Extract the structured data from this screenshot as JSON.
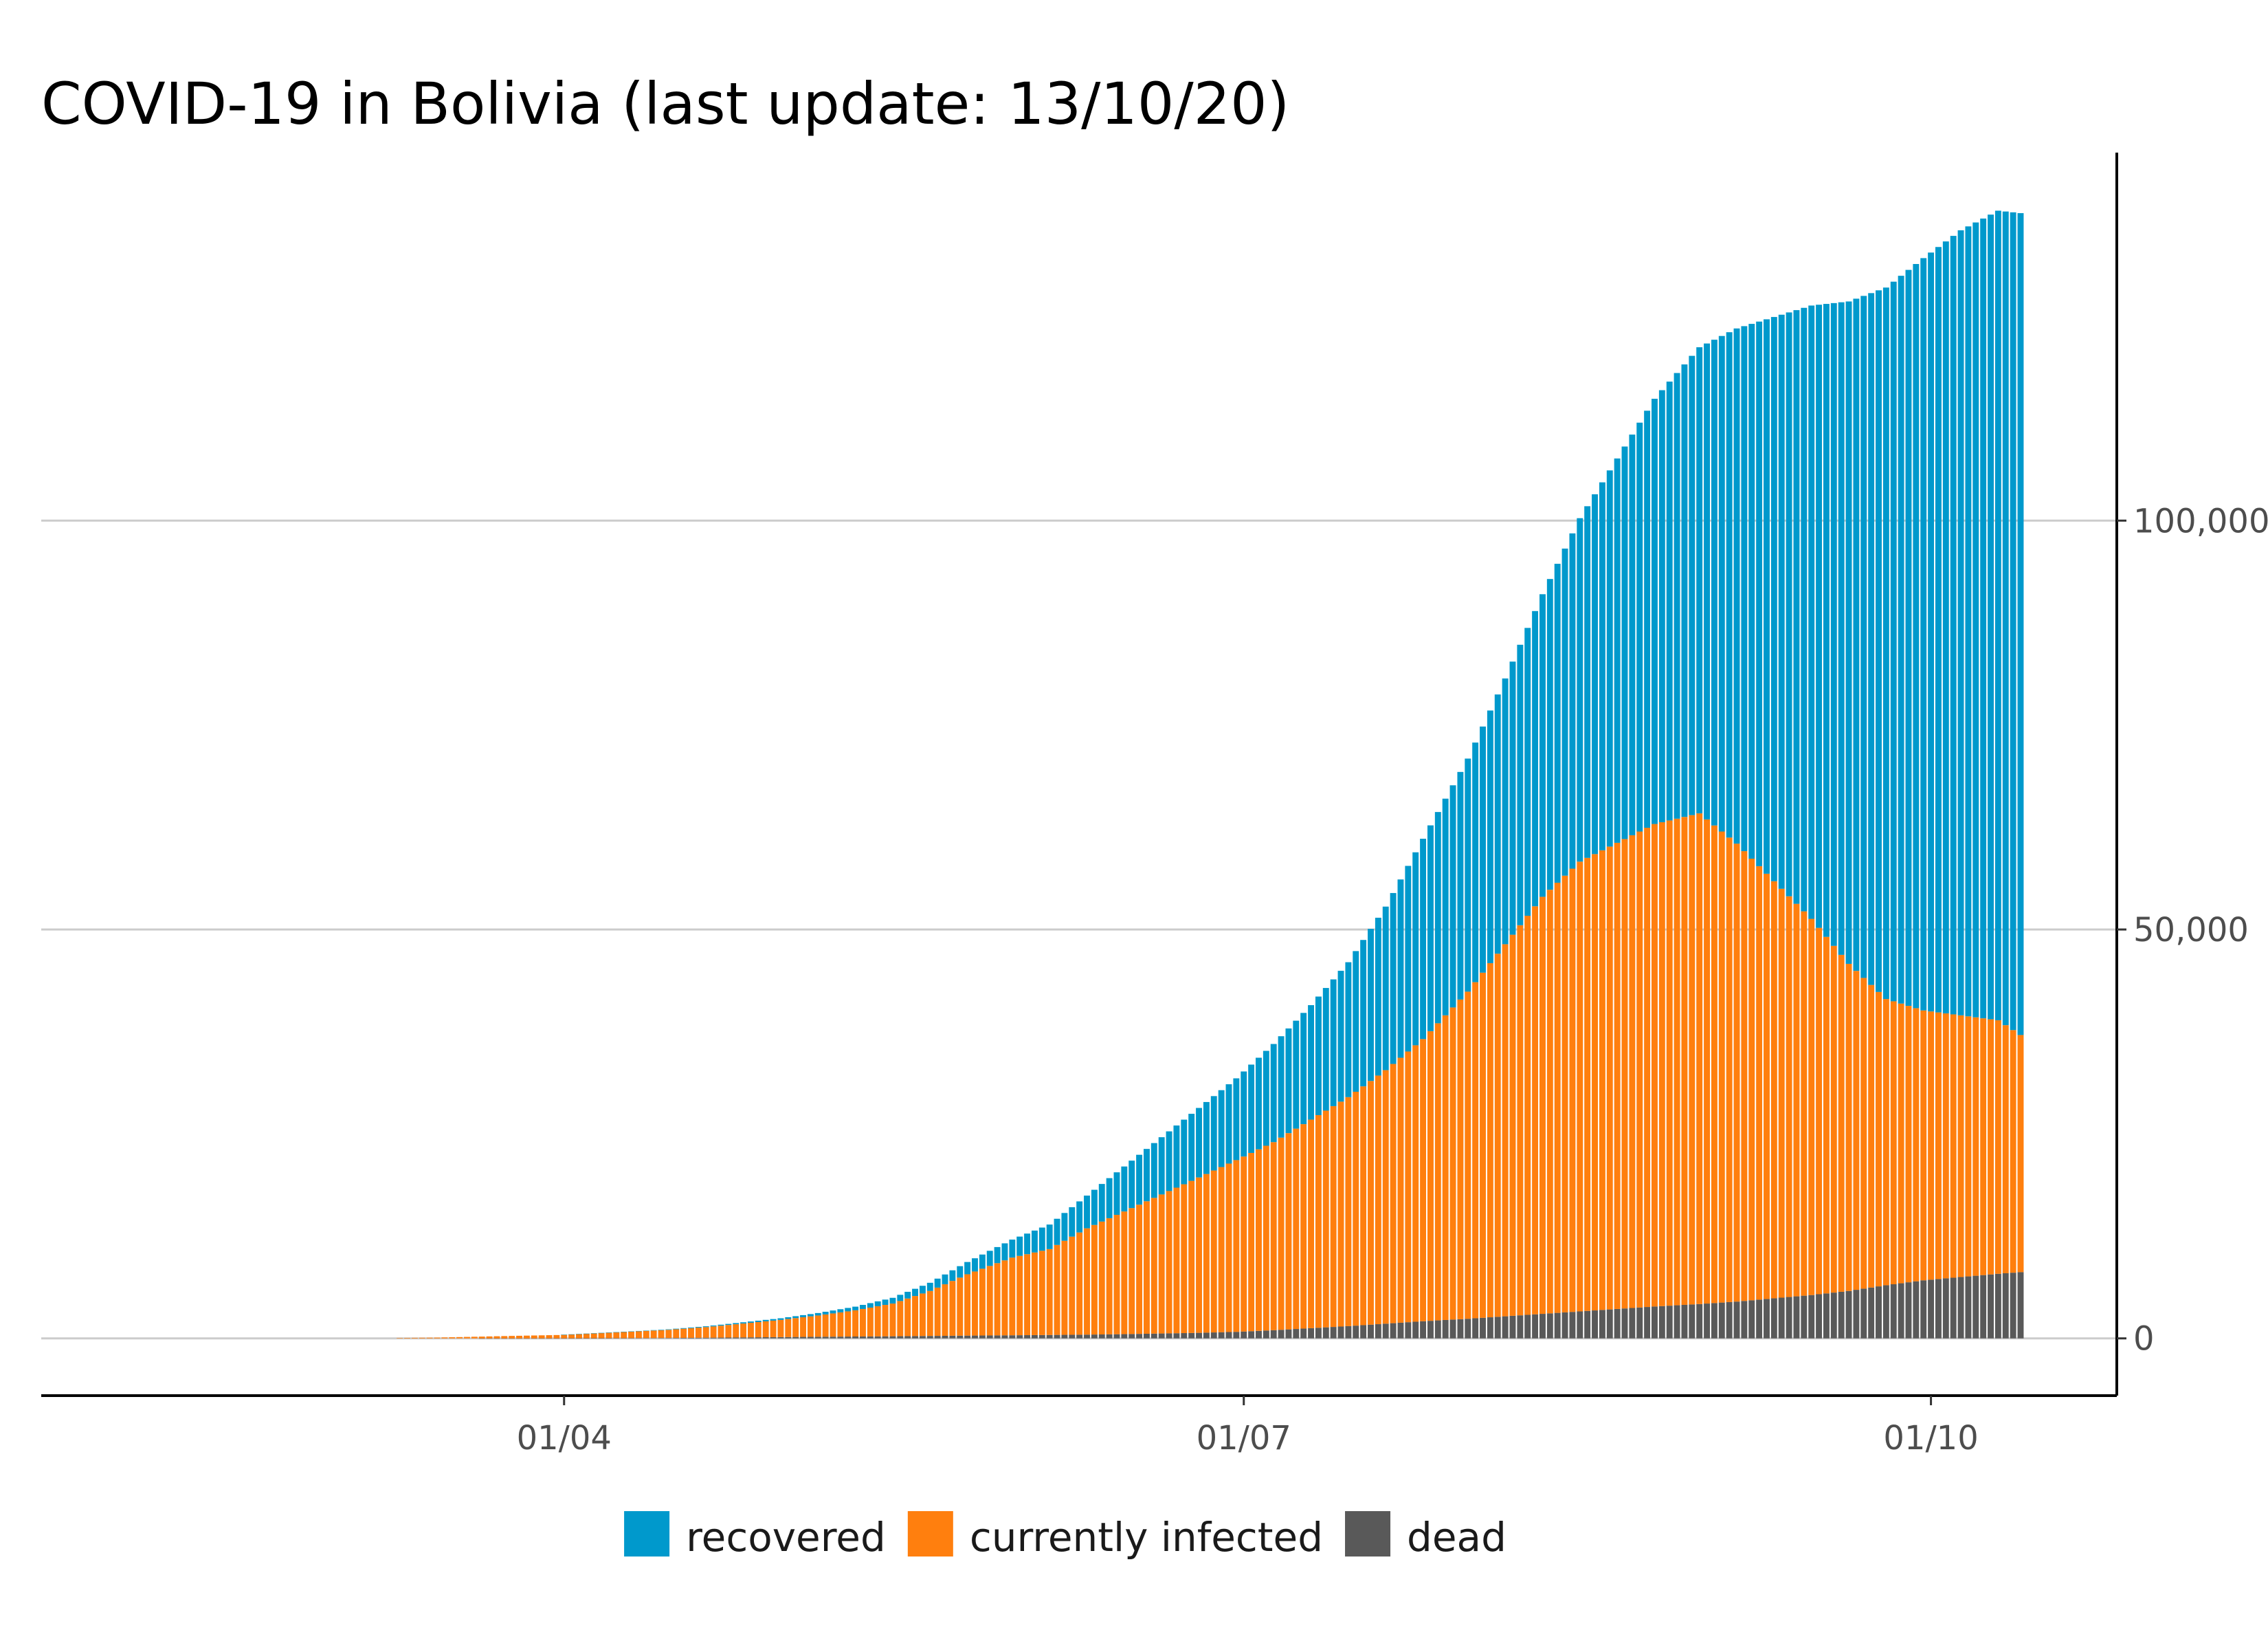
{
  "chart_data": {
    "type": "bar",
    "stacked": true,
    "title": "COVID-19 in Bolivia (last update: 13/10/20)",
    "xlabel": "",
    "ylabel": "",
    "x_range": [
      "2020-01-22",
      "2020-10-13"
    ],
    "ylim": [
      -7000,
      145000
    ],
    "yticks": [
      0,
      50000,
      100000
    ],
    "ytick_labels": [
      "0",
      "50,000",
      "100,000"
    ],
    "xticks": [
      "2020-04-01",
      "2020-07-01",
      "2020-10-01"
    ],
    "xtick_labels": [
      "01/04",
      "01/07",
      "01/10"
    ],
    "y_axis_position": "right",
    "grid": "horizontal",
    "legend_position": "bottom",
    "colors": {
      "recovered": "#0099cc",
      "currently infected": "#ff7f0e",
      "dead": "#595959"
    },
    "series_order": [
      "dead",
      "currently infected",
      "recovered"
    ],
    "legend_order": [
      "recovered",
      "currently infected",
      "dead"
    ],
    "x": [
      "2020-03-10",
      "2020-03-15",
      "2020-03-20",
      "2020-03-25",
      "2020-03-31",
      "2020-04-05",
      "2020-04-10",
      "2020-04-15",
      "2020-04-20",
      "2020-04-25",
      "2020-04-30",
      "2020-05-05",
      "2020-05-10",
      "2020-05-15",
      "2020-05-20",
      "2020-05-25",
      "2020-05-31",
      "2020-06-05",
      "2020-06-10",
      "2020-06-15",
      "2020-06-20",
      "2020-06-25",
      "2020-06-30",
      "2020-07-05",
      "2020-07-10",
      "2020-07-15",
      "2020-07-20",
      "2020-07-25",
      "2020-07-31",
      "2020-08-05",
      "2020-08-10",
      "2020-08-15",
      "2020-08-20",
      "2020-08-25",
      "2020-08-31",
      "2020-09-05",
      "2020-09-10",
      "2020-09-15",
      "2020-09-20",
      "2020-09-25",
      "2020-09-30",
      "2020-10-05",
      "2020-10-10",
      "2020-10-13"
    ],
    "series": [
      {
        "name": "dead",
        "values": [
          0,
          0,
          0,
          2,
          10,
          20,
          30,
          50,
          80,
          120,
          160,
          200,
          230,
          260,
          300,
          340,
          380,
          420,
          460,
          520,
          600,
          680,
          800,
          1000,
          1250,
          1500,
          1800,
          2100,
          2400,
          2700,
          3000,
          3300,
          3600,
          3900,
          4200,
          4500,
          4900,
          5300,
          5800,
          6500,
          7100,
          7500,
          7900,
          8100
        ]
      },
      {
        "name": "currently infected",
        "values": [
          50,
          100,
          200,
          300,
          400,
          600,
          800,
          1000,
          1300,
          1700,
          2100,
          2600,
          3200,
          4000,
          5500,
          7500,
          9500,
          10500,
          13000,
          15000,
          17000,
          19000,
          21000,
          23000,
          25500,
          28000,
          31000,
          34500,
          40000,
          45500,
          51000,
          55000,
          57000,
          59000,
          60000,
          56000,
          51000,
          46000,
          40000,
          35000,
          33000,
          32000,
          31000,
          29000
        ]
      },
      {
        "name": "recovered",
        "values": [
          0,
          0,
          0,
          0,
          0,
          10,
          30,
          60,
          100,
          150,
          200,
          300,
          450,
          700,
          1000,
          1500,
          2200,
          3000,
          4000,
          5500,
          7000,
          8500,
          10000,
          12000,
          14000,
          16500,
          20000,
          24500,
          28500,
          32500,
          37000,
          42000,
          47000,
          52000,
          57000,
          63000,
          69000,
          75000,
          81000,
          87000,
          92000,
          96000,
          99000,
          100500
        ]
      }
    ]
  }
}
